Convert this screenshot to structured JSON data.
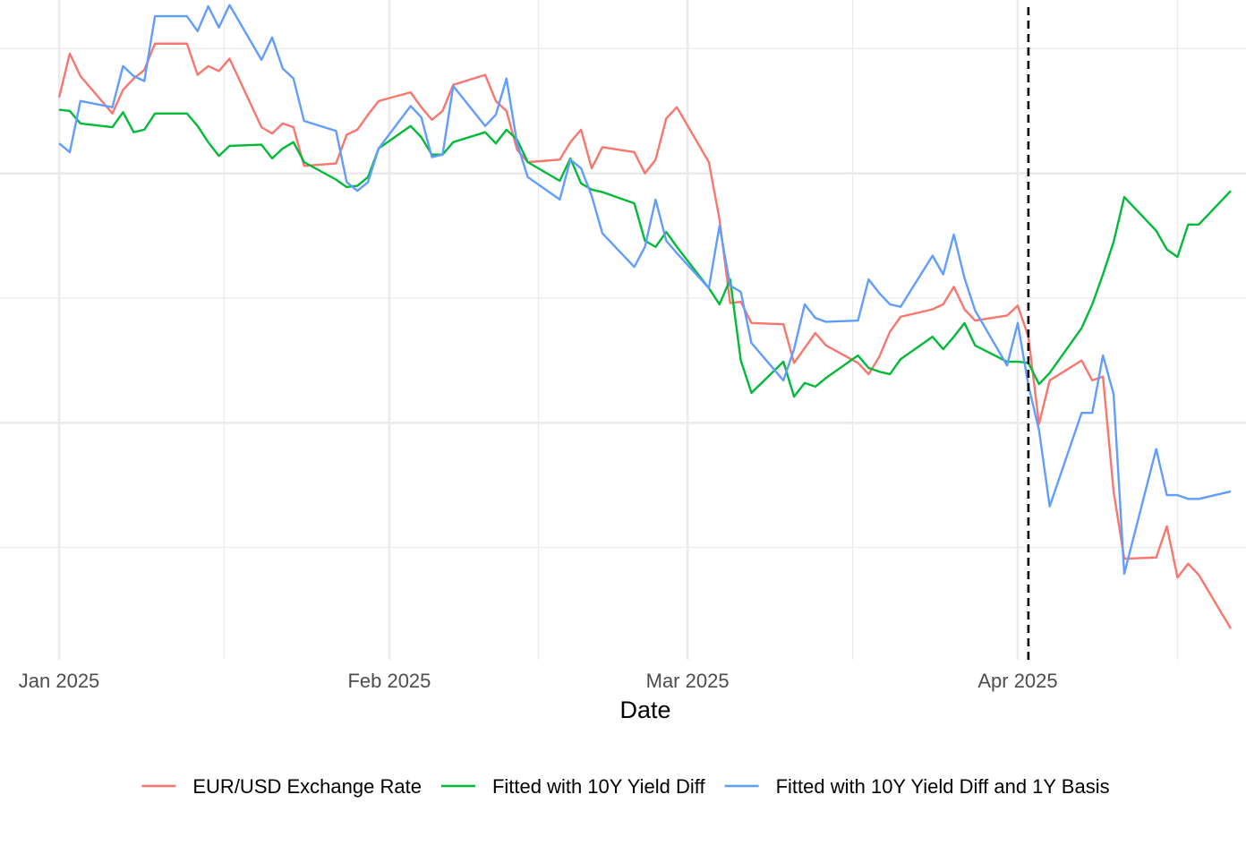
{
  "chart_data": {
    "type": "line",
    "x_label": "Date",
    "x": [
      0,
      1,
      2,
      5,
      6,
      7,
      8,
      9,
      12,
      13,
      14,
      15,
      16,
      19,
      20,
      21,
      22,
      23,
      26,
      27,
      28,
      29,
      30,
      33,
      34,
      35,
      36,
      37,
      40,
      41,
      42,
      43,
      44,
      47,
      48,
      49,
      50,
      51,
      54,
      55,
      56,
      57,
      58,
      61,
      62,
      63,
      64,
      65,
      68,
      69,
      70,
      71,
      72,
      75,
      76,
      77,
      78,
      79,
      82,
      83,
      84,
      85,
      86,
      89,
      90,
      91,
      92,
      93,
      96,
      97,
      98,
      99,
      100,
      103,
      104,
      105,
      106,
      107,
      110
    ],
    "xlim": [
      -5.55,
      111.43
    ],
    "xticks": [
      {
        "value": 0,
        "label": "Jan 2025"
      },
      {
        "value": 31,
        "label": "Feb 2025"
      },
      {
        "value": 59,
        "label": "Mar 2025"
      },
      {
        "value": 90,
        "label": "Apr 2025"
      }
    ],
    "xminor": [
      15.5,
      45,
      74.5,
      105
    ],
    "ylim": [
      -0.9,
      4.39
    ],
    "yticks": [
      1,
      3
    ],
    "yminor": [
      0,
      2,
      4
    ],
    "grid": true,
    "vline": 91,
    "legend": "bottom",
    "series": [
      {
        "name": "EUR/USD Exchange Rate",
        "color": "#F8766D",
        "values": [
          3.61,
          3.96,
          3.78,
          3.48,
          3.67,
          3.76,
          3.83,
          4.04,
          4.04,
          3.79,
          3.86,
          3.82,
          3.92,
          3.37,
          3.32,
          3.4,
          3.37,
          3.06,
          3.08,
          3.31,
          3.35,
          3.47,
          3.58,
          3.65,
          3.53,
          3.43,
          3.5,
          3.71,
          3.79,
          3.58,
          3.5,
          3.19,
          3.09,
          3.11,
          3.25,
          3.35,
          3.04,
          3.21,
          3.17,
          3.0,
          3.11,
          3.44,
          3.53,
          3.09,
          2.63,
          1.96,
          1.97,
          1.8,
          1.79,
          1.48,
          1.6,
          1.72,
          1.62,
          1.48,
          1.39,
          1.53,
          1.73,
          1.85,
          1.91,
          1.95,
          2.09,
          1.91,
          1.82,
          1.86,
          1.94,
          1.69,
          0.99,
          1.34,
          1.5,
          1.34,
          1.37,
          0.45,
          -0.09,
          -0.08,
          0.17,
          -0.24,
          -0.13,
          -0.22,
          -0.65
        ]
      },
      {
        "name": "Fitted with 10Y Yield Diff",
        "color": "#00BA38",
        "values": [
          3.51,
          3.5,
          3.4,
          3.37,
          3.49,
          3.33,
          3.35,
          3.48,
          3.48,
          3.38,
          3.25,
          3.14,
          3.22,
          3.23,
          3.12,
          3.2,
          3.25,
          3.09,
          2.95,
          2.89,
          2.9,
          2.97,
          3.2,
          3.38,
          3.29,
          3.15,
          3.15,
          3.25,
          3.33,
          3.24,
          3.35,
          3.27,
          3.09,
          2.94,
          3.12,
          2.92,
          2.87,
          2.85,
          2.76,
          2.46,
          2.41,
          2.53,
          2.41,
          2.08,
          1.95,
          2.15,
          1.5,
          1.24,
          1.49,
          1.21,
          1.32,
          1.29,
          1.36,
          1.54,
          1.44,
          1.41,
          1.39,
          1.51,
          1.69,
          1.59,
          1.69,
          1.8,
          1.62,
          1.49,
          1.49,
          1.48,
          1.31,
          1.4,
          1.76,
          1.95,
          2.19,
          2.45,
          2.81,
          2.54,
          2.39,
          2.33,
          2.59,
          2.59,
          2.86
        ]
      },
      {
        "name": "Fitted with 10Y Yield Diff and 1Y Basis",
        "color": "#619CFF",
        "values": [
          3.24,
          3.17,
          3.58,
          3.53,
          3.86,
          3.78,
          3.74,
          4.26,
          4.26,
          4.14,
          4.34,
          4.17,
          4.35,
          3.91,
          4.09,
          3.84,
          3.76,
          3.42,
          3.34,
          2.93,
          2.86,
          2.93,
          3.2,
          3.54,
          3.45,
          3.13,
          3.15,
          3.7,
          3.38,
          3.47,
          3.76,
          3.24,
          2.97,
          2.79,
          3.11,
          3.04,
          2.82,
          2.52,
          2.25,
          2.41,
          2.79,
          2.46,
          2.36,
          2.08,
          2.58,
          2.1,
          2.05,
          1.64,
          1.34,
          1.59,
          1.95,
          1.84,
          1.81,
          1.82,
          2.15,
          2.04,
          1.95,
          1.93,
          2.34,
          2.19,
          2.51,
          2.16,
          1.9,
          1.46,
          1.8,
          1.3,
          0.94,
          0.33,
          1.08,
          1.08,
          1.54,
          1.23,
          -0.21,
          0.79,
          0.42,
          0.42,
          0.39,
          0.39,
          0.45
        ]
      }
    ]
  }
}
